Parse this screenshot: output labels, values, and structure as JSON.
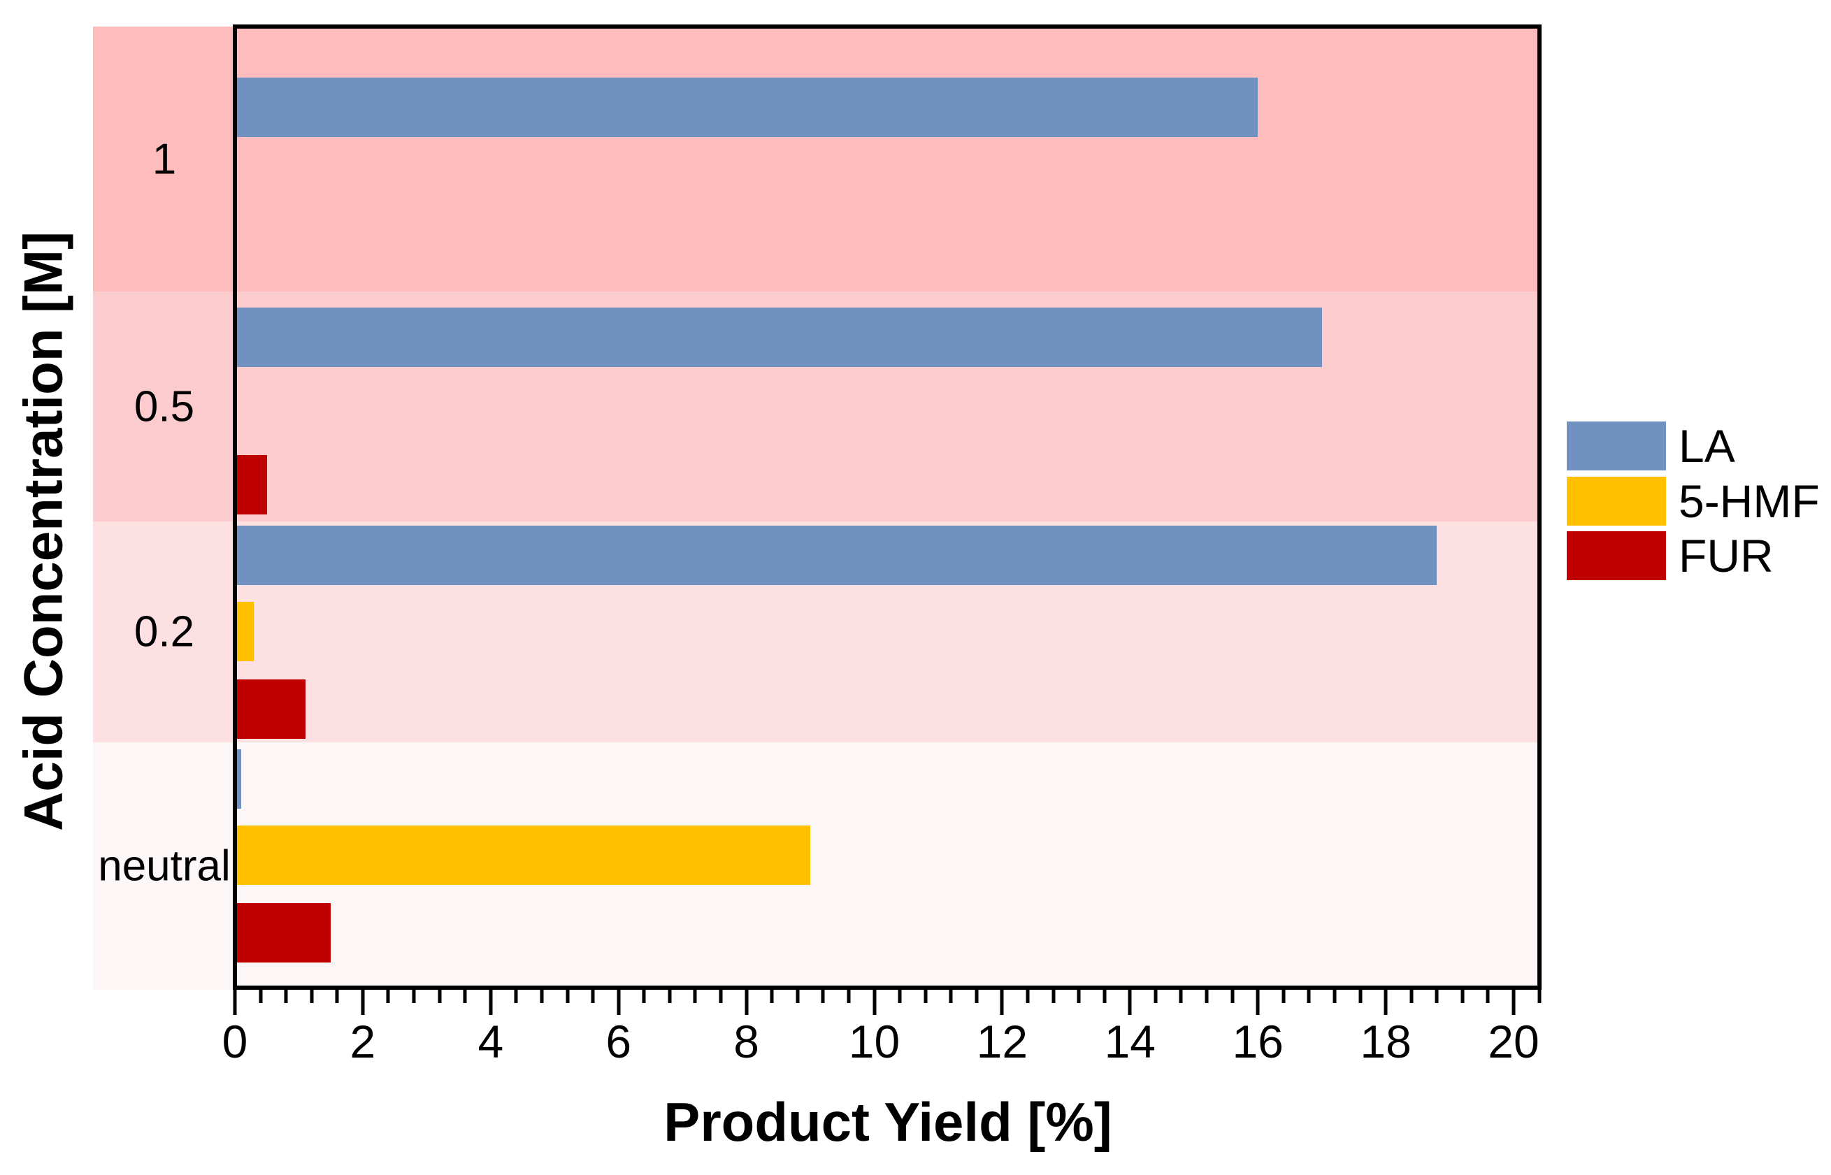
{
  "chart_data": {
    "type": "bar",
    "orientation": "horizontal",
    "title": "",
    "xlabel": "Product Yield [%]",
    "ylabel": "Acid Concentration [M]",
    "categories": [
      "1",
      "0.5",
      "0.2",
      "neutral"
    ],
    "series": [
      {
        "name": "LA",
        "color": "#7191C1",
        "values": [
          16.0,
          17.0,
          18.8,
          0.1
        ]
      },
      {
        "name": "5-HMF",
        "color": "#FFC000",
        "values": [
          0,
          0,
          0.3,
          9.0
        ]
      },
      {
        "name": "FUR",
        "color": "#C00000",
        "values": [
          0,
          0.5,
          1.1,
          1.5
        ]
      }
    ],
    "xlim": [
      0,
      20.4
    ],
    "x_ticks": [
      0,
      2,
      4,
      6,
      8,
      10,
      12,
      14,
      16,
      18,
      20
    ],
    "x_minor_tick_step": 0.4,
    "grid": false,
    "legend_position": "right-outside",
    "band_colors": [
      "#FFBCBD",
      "#FCCBCE",
      "#FDE0E2",
      "#FDF6F6"
    ],
    "axis_color": "#000000",
    "background_color": "#FFFFFF"
  }
}
